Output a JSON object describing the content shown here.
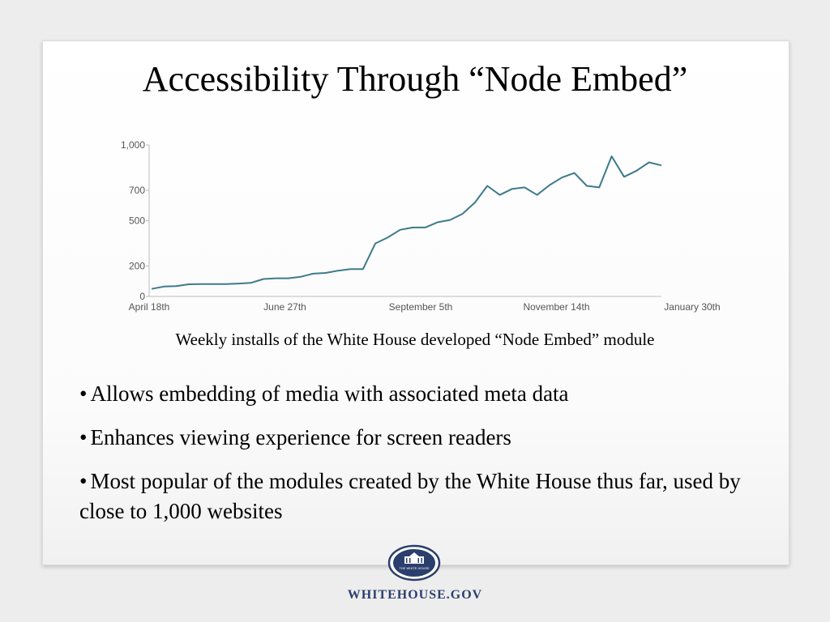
{
  "slide": {
    "title": "Accessibility Through “Node Embed”",
    "caption": "Weekly installs of the White House developed “Node Embed” module",
    "bullets": [
      "Allows embedding of media with associated meta data",
      "Enhances viewing experience for screen readers",
      "Most popular of the modules created by the White House thus far, used by close to 1,000 websites"
    ],
    "footer": {
      "seal_text": "THE WHITE HOUSE",
      "brand": "WHITEHOUSE.GOV"
    }
  },
  "colors": {
    "line": "#3d7a8c",
    "axis": "#bbbbbb",
    "brand": "#2b3f6e"
  },
  "chart_data": {
    "type": "line",
    "title": "",
    "xlabel": "",
    "ylabel": "",
    "ylim": [
      0,
      1000
    ],
    "y_ticks": [
      0,
      200,
      500,
      700,
      1000
    ],
    "y_tick_labels": [
      "0",
      "200",
      "500",
      "700",
      "1,000"
    ],
    "x_tick_labels": [
      "April 18th",
      "June 27th",
      "September 5th",
      "November 14th",
      "January 30th"
    ],
    "grid": false,
    "legend": "none",
    "series": [
      {
        "values": [
          50,
          65,
          68,
          80,
          82,
          82,
          82,
          85,
          90,
          115,
          120,
          120,
          130,
          150,
          155,
          170,
          180,
          180,
          350,
          390,
          440,
          455,
          455,
          490,
          505,
          545,
          620,
          730,
          670,
          710,
          720,
          670,
          735,
          785,
          815,
          730,
          720,
          925,
          790,
          830,
          885,
          865
        ]
      }
    ]
  }
}
